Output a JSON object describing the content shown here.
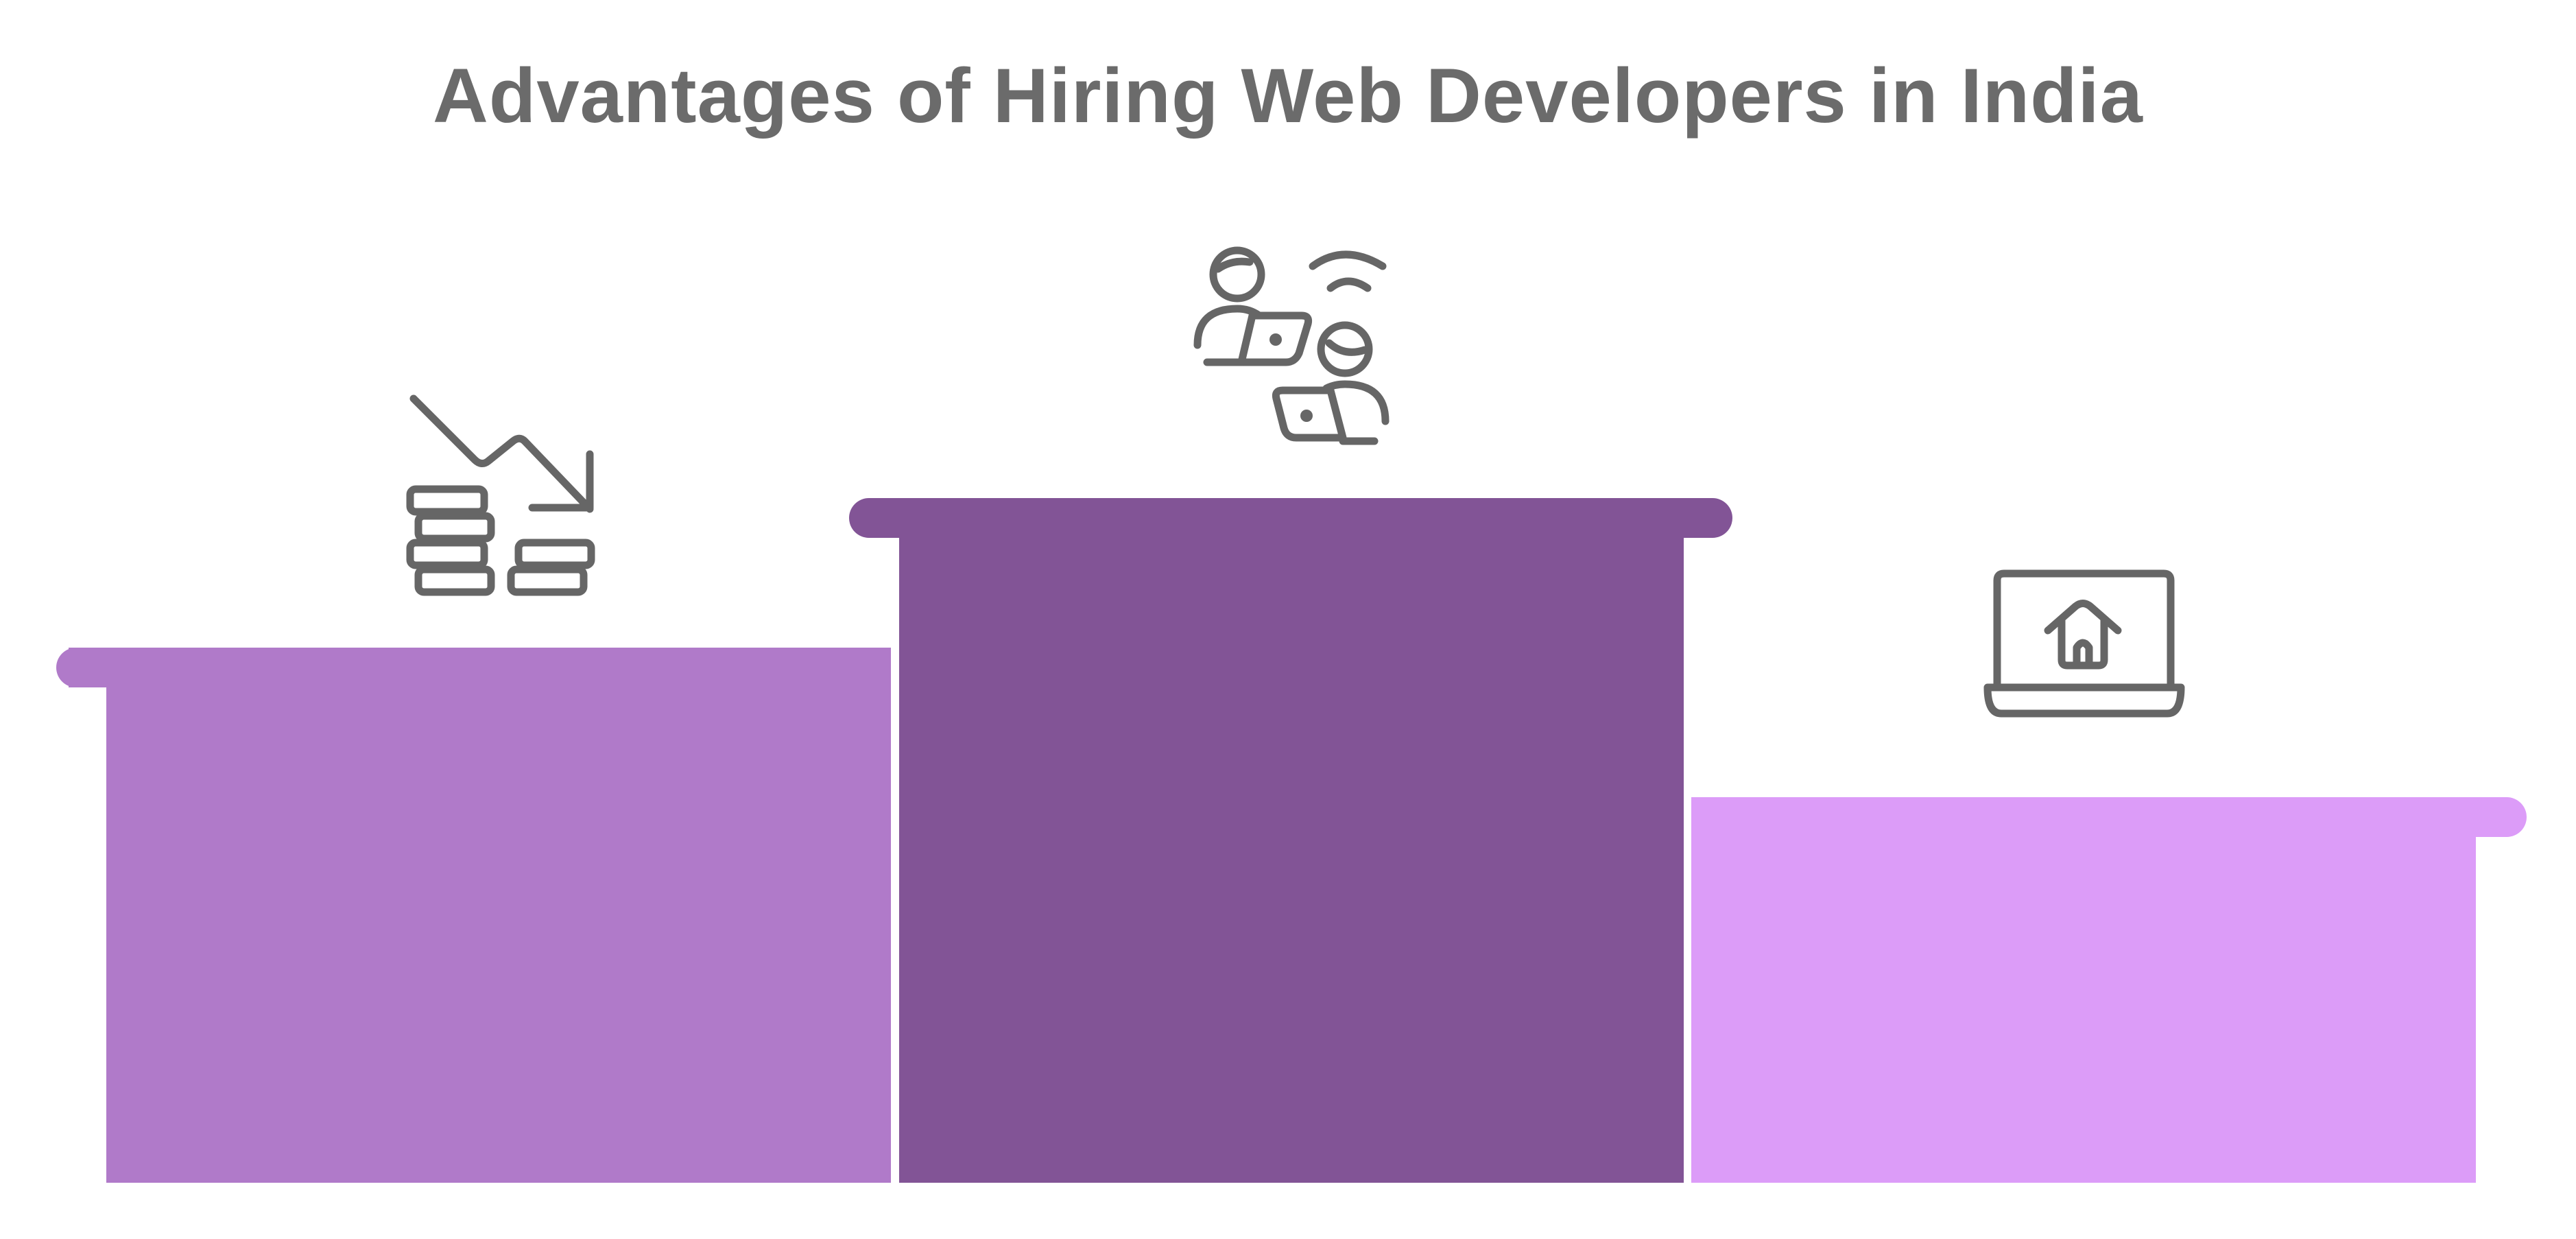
{
  "title": "Advantages of Hiring Web Developers in India",
  "colors": {
    "title": "#6b6b6b",
    "icon_stroke": "#666666",
    "step_left": "#b07ac9",
    "step_center": "#825496",
    "step_right": "#dc9cf8",
    "background": "#ffffff"
  },
  "steps": [
    {
      "id": "left",
      "icon": "cost-reduction-coins-icon"
    },
    {
      "id": "center",
      "icon": "remote-developers-team-icon"
    },
    {
      "id": "right",
      "icon": "laptop-home-remote-work-icon"
    }
  ]
}
